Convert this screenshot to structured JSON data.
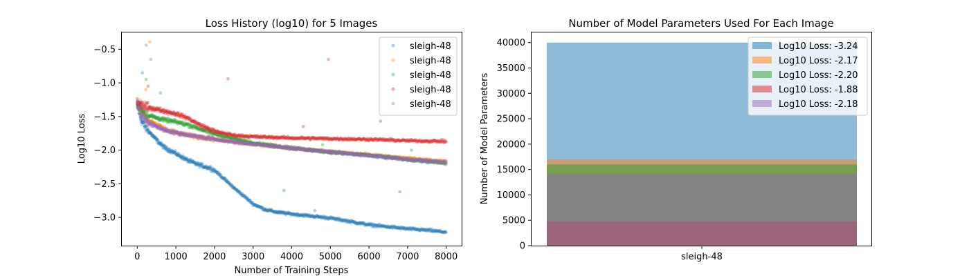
{
  "chart_data": [
    {
      "type": "scatter",
      "title": "Loss History (log10) for 5 Images",
      "xlabel": "Number of Training Steps",
      "ylabel": "Log10 Loss",
      "xlim": [
        -400,
        8400
      ],
      "ylim": [
        -3.42,
        -0.25
      ],
      "xticks": [
        0,
        1000,
        2000,
        3000,
        4000,
        5000,
        6000,
        7000,
        8000
      ],
      "yticks": [
        -3.0,
        -2.5,
        -2.0,
        -1.5,
        -1.0,
        -0.5
      ],
      "ytick_labels": [
        "−3.0",
        "−2.5",
        "−2.0",
        "−1.5",
        "−1.0",
        "−0.5"
      ],
      "marker_alpha": 0.25,
      "legend_position": "upper right",
      "series": [
        {
          "name": "sleigh-48",
          "color": "#1f77b4",
          "x": [
            0,
            100,
            200,
            300,
            500,
            700,
            1000,
            1300,
            1600,
            1900,
            2000,
            2200,
            2500,
            2800,
            3000,
            3300,
            3600,
            4000,
            4500,
            5000,
            5500,
            6000,
            6500,
            7000,
            7500,
            8000
          ],
          "y": [
            -1.32,
            -1.55,
            -1.65,
            -1.72,
            -1.85,
            -1.96,
            -2.05,
            -2.15,
            -2.22,
            -2.27,
            -2.3,
            -2.4,
            -2.56,
            -2.7,
            -2.8,
            -2.88,
            -2.92,
            -2.95,
            -2.98,
            -3.01,
            -3.06,
            -3.11,
            -3.14,
            -3.17,
            -3.19,
            -3.22
          ],
          "outliers": [
            [
              130,
              -0.85
            ],
            [
              3800,
              -2.6
            ],
            [
              6800,
              -2.62
            ],
            [
              4600,
              -2.9
            ]
          ]
        },
        {
          "name": "sleigh-48",
          "color": "#ff7f0e",
          "x": [
            0,
            100,
            200,
            300,
            500,
            700,
            1000,
            1500,
            2000,
            2500,
            3000,
            3500,
            4000,
            5000,
            6000,
            7000,
            8000
          ],
          "y": [
            -1.32,
            -1.42,
            -1.5,
            -1.56,
            -1.62,
            -1.68,
            -1.74,
            -1.8,
            -1.84,
            -1.88,
            -1.91,
            -1.94,
            -1.97,
            -2.02,
            -2.07,
            -2.12,
            -2.17
          ],
          "outliers": [
            [
              320,
              -0.39
            ],
            [
              220,
              -1.1
            ]
          ]
        },
        {
          "name": "sleigh-48",
          "color": "#2ca02c",
          "x": [
            0,
            100,
            200,
            300,
            500,
            700,
            1000,
            1300,
            1600,
            2000,
            2500,
            3000,
            3500,
            4000,
            5000,
            6000,
            7000,
            8000
          ],
          "y": [
            -1.32,
            -1.4,
            -1.45,
            -1.48,
            -1.52,
            -1.55,
            -1.58,
            -1.62,
            -1.68,
            -1.76,
            -1.83,
            -1.89,
            -1.93,
            -1.97,
            -2.03,
            -2.08,
            -2.14,
            -2.2
          ],
          "outliers": [
            [
              230,
              -0.95
            ],
            [
              600,
              -1.15
            ],
            [
              4800,
              -1.92
            ],
            [
              7100,
              -2.0
            ]
          ]
        },
        {
          "name": "sleigh-48",
          "color": "#d62728",
          "x": [
            0,
            100,
            200,
            300,
            500,
            700,
            1000,
            1300,
            1600,
            2000,
            2500,
            3000,
            3500,
            4000,
            5000,
            6000,
            7000,
            8000
          ],
          "y": [
            -1.3,
            -1.32,
            -1.35,
            -1.37,
            -1.39,
            -1.42,
            -1.46,
            -1.52,
            -1.62,
            -1.72,
            -1.78,
            -1.8,
            -1.81,
            -1.82,
            -1.83,
            -1.84,
            -1.86,
            -1.87
          ],
          "outliers": [
            [
              4950,
              -0.65
            ],
            [
              2350,
              -0.94
            ],
            [
              6300,
              -1.57
            ],
            [
              4300,
              -1.65
            ],
            [
              280,
              -1.05
            ]
          ]
        },
        {
          "name": "sleigh-48",
          "color": "#9467bd",
          "x": [
            0,
            100,
            200,
            300,
            500,
            700,
            1000,
            1500,
            2000,
            2500,
            3000,
            3500,
            4000,
            5000,
            6000,
            7000,
            8000
          ],
          "y": [
            -1.3,
            -1.48,
            -1.55,
            -1.6,
            -1.65,
            -1.7,
            -1.74,
            -1.79,
            -1.84,
            -1.88,
            -1.91,
            -1.94,
            -1.97,
            -2.03,
            -2.08,
            -2.14,
            -2.18
          ],
          "outliers": [
            [
              230,
              -0.44
            ],
            [
              350,
              -0.65
            ]
          ]
        }
      ]
    },
    {
      "type": "bar",
      "title": "Number of Model Parameters Used For Each Image",
      "xlabel": "",
      "ylabel": "Number of Model Parameters",
      "categories": [
        "sleigh-48"
      ],
      "ylim": [
        0,
        42000
      ],
      "yticks": [
        0,
        5000,
        10000,
        15000,
        20000,
        25000,
        30000,
        35000,
        40000
      ],
      "bar_alpha": 0.5,
      "legend_position": "upper right",
      "series": [
        {
          "name": "Log10 Loss: -3.24",
          "color": "#1f77b4",
          "values": [
            40000
          ]
        },
        {
          "name": "Log10 Loss: -2.17",
          "color": "#ff7f0e",
          "values": [
            17000
          ]
        },
        {
          "name": "Log10 Loss: -2.20",
          "color": "#2ca02c",
          "values": [
            16000
          ]
        },
        {
          "name": "Log10 Loss: -1.88",
          "color": "#d62728",
          "values": [
            4800
          ]
        },
        {
          "name": "Log10 Loss: -2.18",
          "color": "#9467bd",
          "values": [
            14100
          ]
        }
      ]
    }
  ]
}
